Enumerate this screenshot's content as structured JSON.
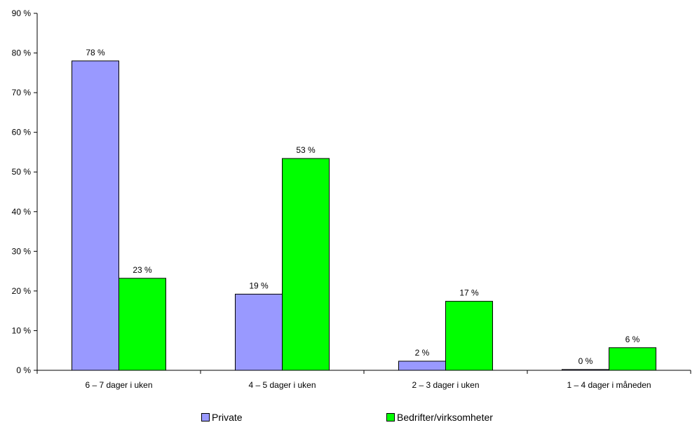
{
  "chart_data": {
    "type": "bar",
    "categories": [
      "6 – 7 dager i uken",
      "4 – 5 dager i uken",
      "2 – 3 dager i uken",
      "1 – 4 dager i måneden"
    ],
    "series": [
      {
        "name": "Private",
        "values": [
          78,
          19.2,
          2.3,
          0.2
        ],
        "labels": [
          "78 %",
          "19 %",
          "2 %",
          "0 %"
        ]
      },
      {
        "name": "Bedrifter/virksomheter",
        "values": [
          23.2,
          53.4,
          17.4,
          5.7
        ],
        "labels": [
          "23 %",
          "53 %",
          "17 %",
          "6 %"
        ]
      }
    ],
    "yticks": [
      "0 %",
      "10 %",
      "20 %",
      "30 %",
      "40 %",
      "50 %",
      "60 %",
      "70 %",
      "80 %",
      "90 %"
    ],
    "ylim": [
      0,
      90
    ],
    "ystep": 10,
    "title": "",
    "xlabel": "",
    "ylabel": "",
    "grid": false,
    "legend_position": "bottom",
    "colors": {
      "Private": "#9999ff",
      "Bedrifter/virksomheter": "#00ff00",
      "axis": "#000000"
    }
  }
}
